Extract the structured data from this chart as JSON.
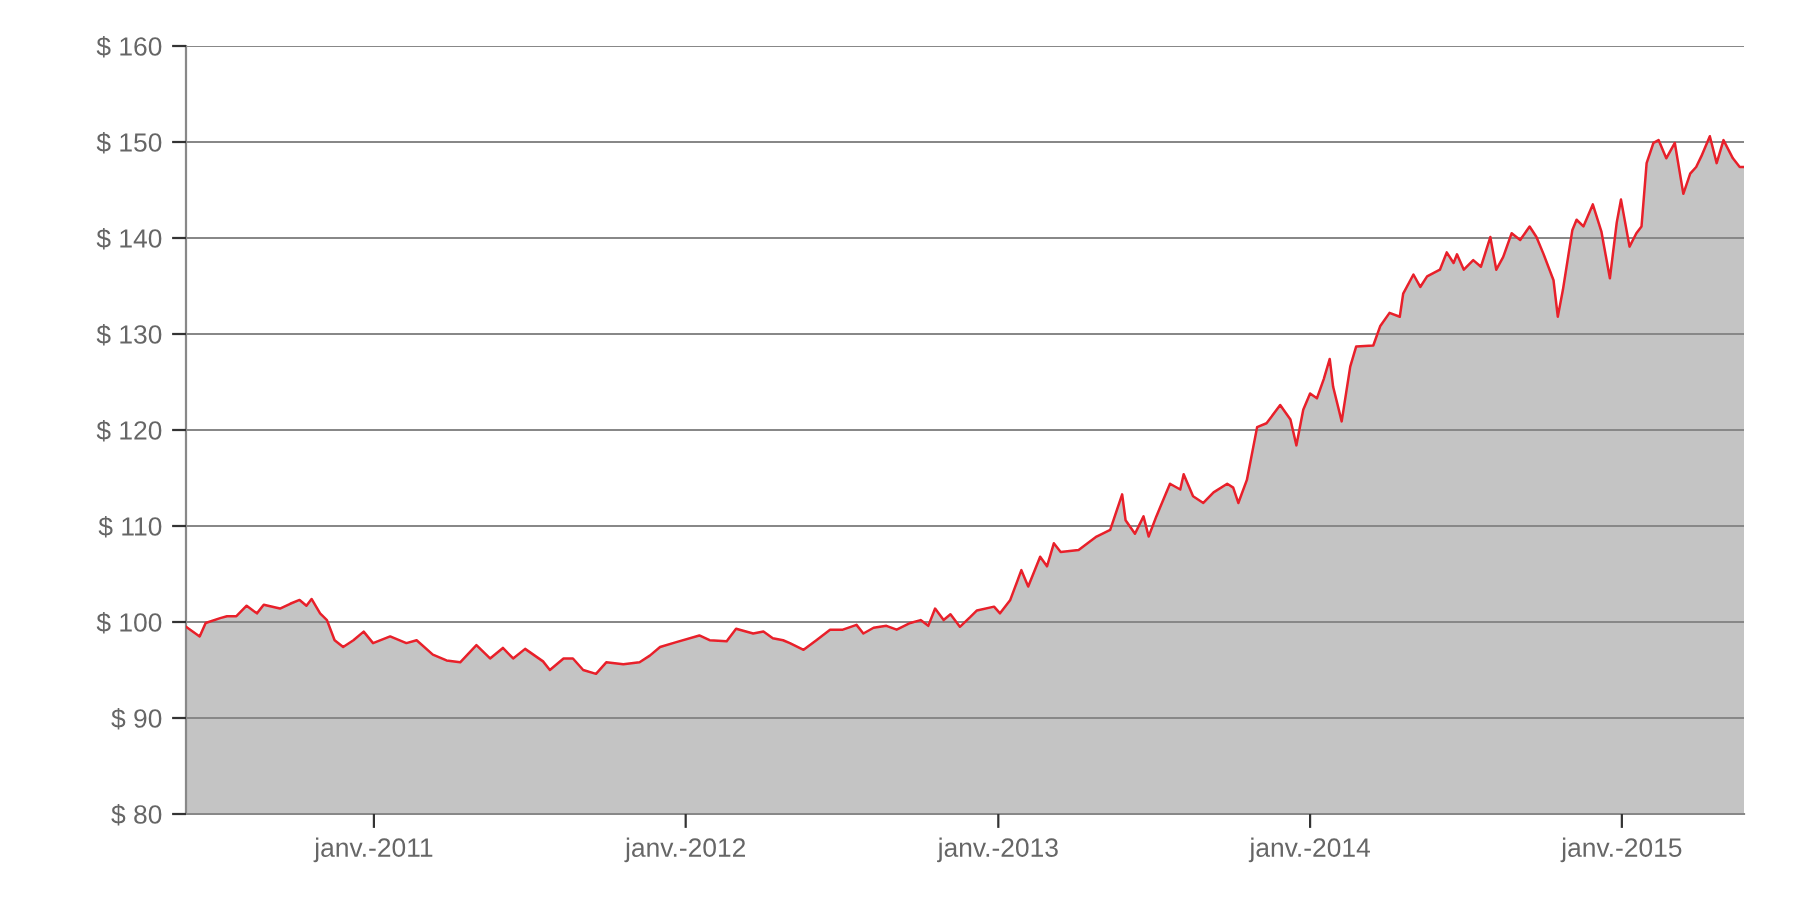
{
  "chart_data": {
    "type": "area",
    "xlim": [
      "2010-05-26",
      "2015-05-24"
    ],
    "xticks": [
      {
        "value": "2011-01-01",
        "label": "janv.-2011"
      },
      {
        "value": "2012-01-01",
        "label": "janv.-2012"
      },
      {
        "value": "2013-01-01",
        "label": "janv.-2013"
      },
      {
        "value": "2014-01-01",
        "label": "janv.-2014"
      },
      {
        "value": "2015-01-01",
        "label": "janv.-2015"
      }
    ],
    "ylim": [
      80,
      160
    ],
    "yticks": [
      {
        "value": 80,
        "label": "$ 80"
      },
      {
        "value": 90,
        "label": "$ 90"
      },
      {
        "value": 100,
        "label": "$ 100"
      },
      {
        "value": 110,
        "label": "$ 110"
      },
      {
        "value": 120,
        "label": "$ 120"
      },
      {
        "value": 130,
        "label": "$ 130"
      },
      {
        "value": 140,
        "label": "$ 140"
      },
      {
        "value": 150,
        "label": "$ 150"
      },
      {
        "value": 160,
        "label": "$ 160"
      }
    ],
    "grid": "y",
    "legend": false,
    "series": [
      {
        "color": "#e8202a",
        "x": [
          "2010-05-26",
          "2010-06-11",
          "2010-06-18",
          "2010-07-05",
          "2010-07-13",
          "2010-07-24",
          "2010-08-05",
          "2010-08-17",
          "2010-08-25",
          "2010-09-13",
          "2010-09-25",
          "2010-10-06",
          "2010-10-14",
          "2010-10-20",
          "2010-10-30",
          "2010-11-07",
          "2010-11-16",
          "2010-11-26",
          "2010-12-08",
          "2010-12-20",
          "2010-12-31",
          "2011-01-20",
          "2011-02-08",
          "2011-02-20",
          "2011-03-11",
          "2011-03-27",
          "2011-04-12",
          "2011-05-01",
          "2011-05-17",
          "2011-06-01",
          "2011-06-13",
          "2011-06-27",
          "2011-07-18",
          "2011-07-26",
          "2011-08-11",
          "2011-08-22",
          "2011-09-03",
          "2011-09-18",
          "2011-09-30",
          "2011-10-20",
          "2011-11-08",
          "2011-11-20",
          "2011-12-02",
          "2011-12-21",
          "2012-01-17",
          "2012-01-29",
          "2012-02-18",
          "2012-02-29",
          "2012-03-20",
          "2012-04-01",
          "2012-04-12",
          "2012-04-24",
          "2012-05-02",
          "2012-05-18",
          "2012-06-02",
          "2012-06-18",
          "2012-07-03",
          "2012-07-19",
          "2012-07-27",
          "2012-08-08",
          "2012-08-23",
          "2012-09-04",
          "2012-09-20",
          "2012-10-02",
          "2012-10-11",
          "2012-10-19",
          "2012-10-29",
          "2012-11-06",
          "2012-11-17",
          "2012-11-29",
          "2012-12-07",
          "2012-12-27",
          "2013-01-03",
          "2013-01-15",
          "2013-01-28",
          "2013-02-05",
          "2013-02-19",
          "2013-02-27",
          "2013-03-07",
          "2013-03-15",
          "2013-04-05",
          "2013-04-26",
          "2013-05-12",
          "2013-05-26",
          "2013-05-30",
          "2013-06-10",
          "2013-06-20",
          "2013-06-26",
          "2013-07-05",
          "2013-07-21",
          "2013-08-02",
          "2013-08-06",
          "2013-08-17",
          "2013-08-29",
          "2013-09-10",
          "2013-09-26",
          "2013-10-03",
          "2013-10-09",
          "2013-10-19",
          "2013-10-31",
          "2013-11-11",
          "2013-11-27",
          "2013-12-09",
          "2013-12-16",
          "2013-12-24",
          "2014-01-01",
          "2014-01-09",
          "2014-01-17",
          "2014-01-24",
          "2014-01-28",
          "2014-02-07",
          "2014-02-17",
          "2014-02-24",
          "2014-03-16",
          "2014-03-24",
          "2014-04-04",
          "2014-04-16",
          "2014-04-20",
          "2014-05-02",
          "2014-05-10",
          "2014-05-18",
          "2014-06-02",
          "2014-06-10",
          "2014-06-18",
          "2014-06-22",
          "2014-06-30",
          "2014-07-11",
          "2014-07-20",
          "2014-07-31",
          "2014-08-07",
          "2014-08-15",
          "2014-08-25",
          "2014-09-04",
          "2014-09-15",
          "2014-09-23",
          "2014-10-01",
          "2014-10-13",
          "2014-10-18",
          "2014-10-24",
          "2014-11-04",
          "2014-11-09",
          "2014-11-17",
          "2014-11-28",
          "2014-12-08",
          "2014-12-18",
          "2014-12-26",
          "2014-12-31",
          "2015-01-10",
          "2015-01-18",
          "2015-01-24",
          "2015-01-30",
          "2015-02-07",
          "2015-02-13",
          "2015-02-22",
          "2015-03-04",
          "2015-03-14",
          "2015-03-22",
          "2015-03-29",
          "2015-04-04",
          "2015-04-14",
          "2015-04-22",
          "2015-04-30",
          "2015-05-11",
          "2015-05-19",
          "2015-05-24"
        ],
        "values": [
          99.5,
          98.5,
          99.9,
          100.4,
          100.6,
          100.6,
          101.7,
          100.9,
          101.8,
          101.4,
          101.9,
          102.3,
          101.7,
          102.4,
          100.9,
          100.2,
          98.1,
          97.4,
          98.1,
          99.0,
          97.8,
          98.5,
          97.8,
          98.1,
          96.6,
          96.0,
          95.8,
          97.6,
          96.2,
          97.3,
          96.2,
          97.2,
          95.9,
          95.0,
          96.2,
          96.2,
          95.0,
          94.6,
          95.8,
          95.6,
          95.8,
          96.5,
          97.4,
          97.9,
          98.6,
          98.1,
          98.0,
          99.3,
          98.8,
          99.0,
          98.3,
          98.1,
          97.8,
          97.1,
          98.1,
          99.2,
          99.2,
          99.7,
          98.8,
          99.4,
          99.6,
          99.2,
          99.9,
          100.2,
          99.6,
          101.4,
          100.2,
          100.8,
          99.5,
          100.5,
          101.2,
          101.6,
          100.9,
          102.3,
          105.4,
          103.7,
          106.8,
          105.8,
          108.2,
          107.3,
          107.5,
          108.9,
          109.6,
          113.3,
          110.6,
          109.2,
          111.0,
          108.9,
          111.0,
          114.4,
          113.8,
          115.4,
          113.1,
          112.4,
          113.5,
          114.4,
          114.0,
          112.4,
          114.8,
          120.3,
          120.7,
          122.6,
          121.1,
          118.4,
          122.1,
          123.8,
          123.3,
          125.3,
          127.4,
          124.5,
          120.9,
          126.6,
          128.7,
          128.8,
          130.8,
          132.2,
          131.8,
          134.2,
          136.2,
          134.9,
          136.0,
          136.7,
          138.5,
          137.4,
          138.3,
          136.7,
          137.7,
          137.0,
          140.1,
          136.7,
          138.0,
          140.5,
          139.8,
          141.2,
          140.1,
          138.4,
          135.6,
          131.8,
          134.6,
          140.8,
          141.9,
          141.2,
          143.5,
          140.7,
          135.8,
          141.6,
          144.0,
          139.1,
          140.5,
          141.2,
          147.8,
          149.9,
          150.2,
          148.3,
          149.9,
          144.6,
          146.7,
          147.4,
          148.5,
          150.6,
          147.8,
          150.2,
          148.3,
          147.4,
          147.4
        ]
      }
    ]
  }
}
